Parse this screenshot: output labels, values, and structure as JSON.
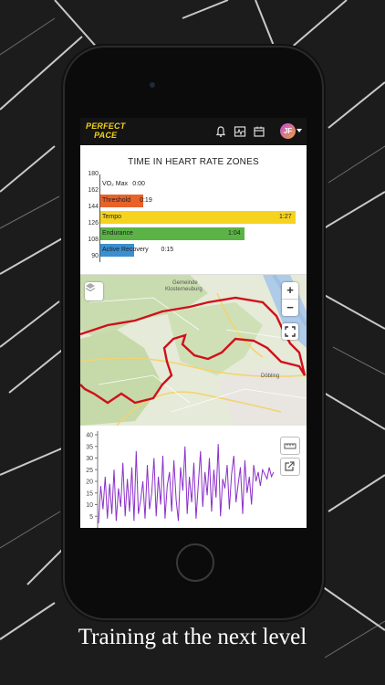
{
  "app": {
    "logo_line1": "PERFECT",
    "logo_line2": "PACE",
    "avatar_initials": "JF"
  },
  "header_icons": [
    "bell-icon",
    "heart-rate-icon",
    "calendar-icon"
  ],
  "hr_zones": {
    "title": "TIME IN HEART RATE ZONES",
    "y_ticks": [
      "180",
      "162",
      "144",
      "126",
      "108",
      "90"
    ],
    "zones": [
      {
        "name": "VO₂ Max",
        "time": "0:00",
        "minutes": 0,
        "color": "#e8e8e8"
      },
      {
        "name": "Threshold",
        "time": "0:19",
        "minutes": 0.32,
        "color": "#e8622a"
      },
      {
        "name": "Tempo",
        "time": "1:27",
        "minutes": 1.45,
        "color": "#f5d31f"
      },
      {
        "name": "Endurance",
        "time": "1:04",
        "minutes": 1.07,
        "color": "#5bb346"
      },
      {
        "name": "Active Recovery",
        "time": "0:15",
        "minutes": 0.25,
        "color": "#3a8fd1"
      }
    ]
  },
  "map": {
    "labels": {
      "town1": "Gemeinde",
      "town2": "Klosterneuburg",
      "town3": "Döbling"
    },
    "controls": {
      "zoom_in": "+",
      "zoom_out": "−"
    },
    "route_color": "#d0101a"
  },
  "chart_data": {
    "type": "line",
    "y_ticks": [
      "40",
      "35",
      "30",
      "25",
      "20",
      "15",
      "10",
      "5"
    ],
    "ylim": [
      0,
      40
    ],
    "series": [
      {
        "color": "#8b2fc9",
        "values": [
          2,
          18,
          8,
          22,
          4,
          19,
          6,
          25,
          3,
          17,
          9,
          28,
          5,
          21,
          7,
          26,
          3,
          33,
          6,
          12,
          20,
          4,
          27,
          8,
          15,
          30,
          5,
          22,
          10,
          31,
          4,
          18,
          24,
          7,
          29,
          12,
          3,
          26,
          16,
          35,
          6,
          22,
          11,
          28,
          4,
          19,
          33,
          9,
          24,
          14,
          30,
          7,
          25,
          13,
          36,
          5,
          21,
          17,
          27,
          8,
          23,
          31,
          11,
          19,
          26,
          6,
          29,
          15,
          22,
          10,
          27,
          20,
          24,
          18,
          25,
          23,
          21,
          26,
          22,
          24
        ]
      }
    ]
  },
  "tagline": "Training at the next level"
}
